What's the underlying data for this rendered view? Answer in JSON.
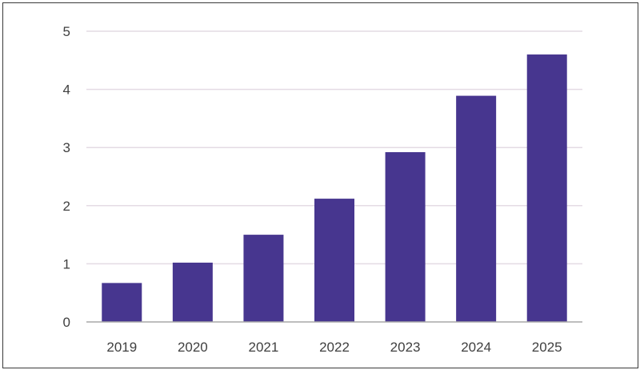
{
  "chart_data": {
    "type": "bar",
    "title": "",
    "xlabel": "",
    "ylabel": "",
    "categories": [
      "2019",
      "2020",
      "2021",
      "2022",
      "2023",
      "2024",
      "2025"
    ],
    "values": [
      0.67,
      1.02,
      1.5,
      2.12,
      2.92,
      3.89,
      4.6
    ],
    "ylim": [
      0,
      5
    ],
    "yticks": [
      "0",
      "1",
      "2",
      "3",
      "4",
      "5"
    ],
    "grid": true,
    "legend": "none",
    "colors": {
      "bar": "#47368f",
      "grid": "#e4dbe4",
      "axis": "#a9a9a9",
      "text": "#404040"
    }
  }
}
